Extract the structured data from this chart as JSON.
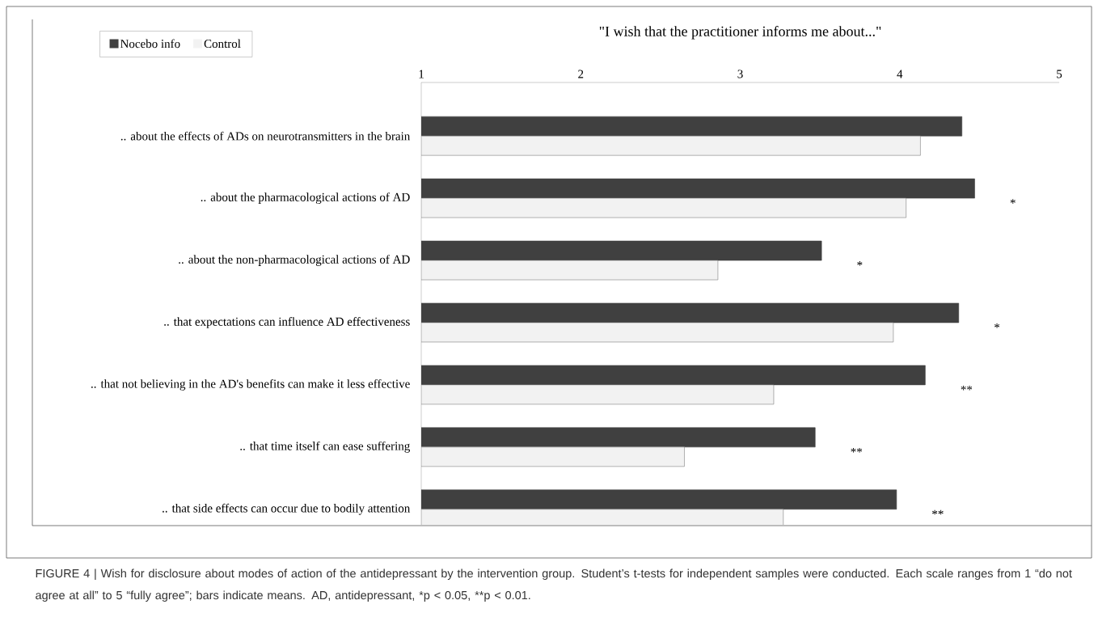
{
  "chart_data": {
    "type": "bar",
    "orientation": "horizontal",
    "title": "\"I wish that the practitioner informs me about...\"",
    "categories": [
      ".. about the effects of ADs on neurotransmitters in the brain",
      ".. about the pharmacological actions of AD",
      ".. about the non-pharmacological actions of AD",
      ".. that expectations can influence AD effectiveness",
      ".. that not believing in the AD's benefits can make it less effective",
      ".. that time itself can ease suffering",
      ".. that side effects can occur due to bodily attention"
    ],
    "series": [
      {
        "name": "Nocebo info",
        "color": "#404040",
        "values": [
          4.39,
          4.47,
          3.51,
          4.37,
          4.16,
          3.47,
          3.98
        ]
      },
      {
        "name": "Control",
        "color": "#f2f2f2",
        "values": [
          4.13,
          4.04,
          2.86,
          3.96,
          3.21,
          2.65,
          3.27
        ]
      }
    ],
    "xlim": [
      1,
      5
    ],
    "xticks": [
      1,
      2,
      3,
      4,
      5
    ],
    "grid": false,
    "legend": "top left",
    "annotations": [
      {
        "text": "*",
        "x": 4.47,
        "y": ".. about the pharmacological actions of AD"
      },
      {
        "text": "*",
        "x": 3.51,
        "y": ".. about the non-pharmacological actions of AD"
      },
      {
        "text": "*",
        "x": 4.37,
        "y": ".. that expectations can influence AD effectiveness"
      },
      {
        "text": "**",
        "x": 4.16,
        "y": ".. that not believing in the AD's benefits can make it less effective"
      },
      {
        "text": "**",
        "x": 3.47,
        "y": ".. that time itself can ease suffering"
      },
      {
        "text": "**",
        "x": 3.98,
        "y": ".. that side effects can occur due to bodily attention"
      },
      "FIGURE 4 | Wish for disclosure about modes of action of the antidepressant by the intervention group. Student’s t-tests for independent samples were conducted. Each scale ranges from 1 “do not agree at all” to 5 “fully agree”; bars indicate means. AD, antidepressant, *p < 0.05, **p < 0.01."
    ]
  }
}
